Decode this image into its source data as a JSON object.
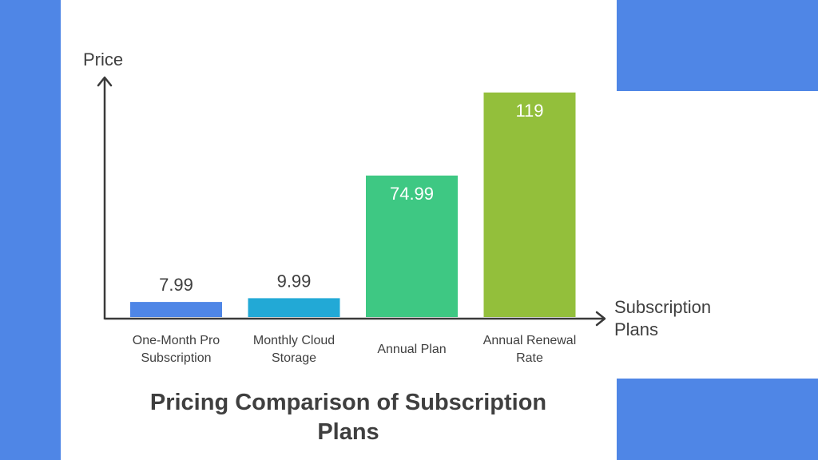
{
  "colors": {
    "background": "#ffffff",
    "side_panel": "#4f86e6",
    "axis": "#3a3a3a",
    "text": "#3f3f3f"
  },
  "chart_data": {
    "type": "bar",
    "title": "Pricing Comparison of Subscription Plans",
    "ylabel": "Price",
    "xlabel": "Subscription Plans",
    "categories": [
      "One-Month Pro Subscription",
      "Monthly Cloud Storage",
      "Annual Plan",
      "Annual Renewal Rate"
    ],
    "values": [
      7.99,
      9.99,
      74.99,
      119
    ],
    "value_labels": [
      "7.99",
      "9.99",
      "74.99",
      "119"
    ],
    "bar_colors": [
      "#4f86e6",
      "#22a9d6",
      "#3ec883",
      "#93bf3b"
    ],
    "ylim": [
      0,
      124
    ],
    "grid": false,
    "legend": "none"
  }
}
